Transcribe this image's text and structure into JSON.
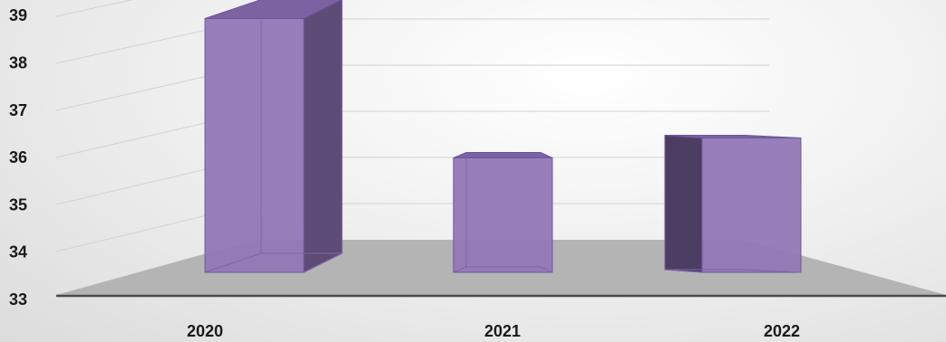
{
  "chart_data": {
    "type": "bar",
    "categories": [
      "2020",
      "2021",
      "2022"
    ],
    "values": [
      38.1,
      35.3,
      35.7
    ],
    "ylim": [
      33,
      39
    ],
    "yticks": [
      33,
      34,
      35,
      36,
      37,
      38,
      39
    ],
    "grid": true,
    "style": "3d-column",
    "colors": {
      "front": "#9278b6",
      "side_dark": "#5e4c78",
      "side_darker": "#4c3d62",
      "top": "#7a63a0",
      "edge": "#6d55a0",
      "floor": "#b4b4b4",
      "axis": "#4a4a4a"
    }
  }
}
